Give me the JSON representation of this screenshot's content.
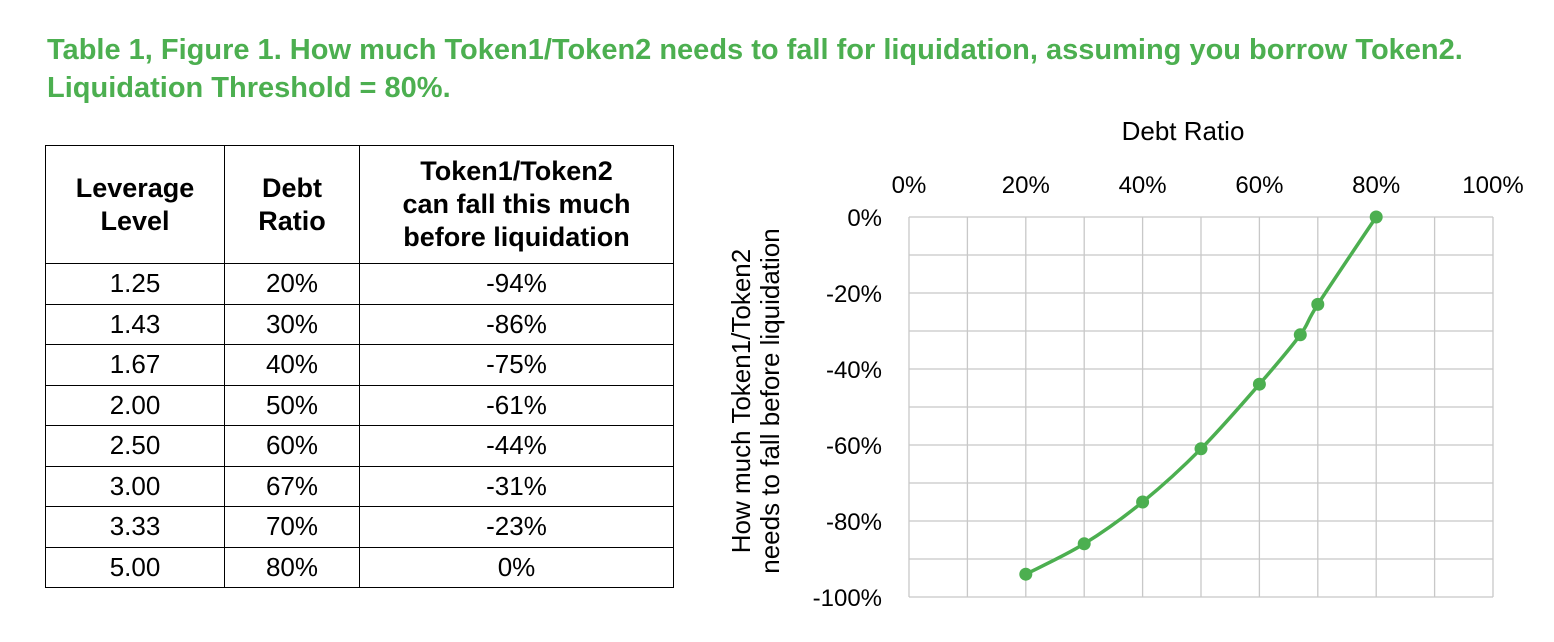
{
  "title": "Table 1, Figure 1. How much Token1/Token2 needs to fall for liquidation, assuming you borrow Token2. Liquidation Threshold = 80%.",
  "colors": {
    "accent": "#4caf50",
    "grid": "#c8c8c8"
  },
  "table": {
    "headers": [
      [
        "Leverage",
        "Level"
      ],
      [
        "Debt",
        "Ratio"
      ],
      [
        "Token1/Token2",
        "can fall this much",
        "before liquidation"
      ]
    ],
    "rows": [
      [
        "1.25",
        "20%",
        "-94%"
      ],
      [
        "1.43",
        "30%",
        "-86%"
      ],
      [
        "1.67",
        "40%",
        "-75%"
      ],
      [
        "2.00",
        "50%",
        "-61%"
      ],
      [
        "2.50",
        "60%",
        "-44%"
      ],
      [
        "3.00",
        "67%",
        "-31%"
      ],
      [
        "3.33",
        "70%",
        "-23%"
      ],
      [
        "5.00",
        "80%",
        "0%"
      ]
    ]
  },
  "chart_data": {
    "type": "line",
    "xlabel": "Debt Ratio",
    "ylabel": "How much Token1/Token2 needs to fall before liquidation",
    "ylabel_lines": [
      "How much Token1/Token2",
      "needs to fall before liquidation"
    ],
    "x_axis_position": "top",
    "xlim": [
      0,
      100
    ],
    "ylim": [
      -100,
      0
    ],
    "xticks": [
      0,
      20,
      40,
      60,
      80,
      100
    ],
    "xtick_labels": [
      "0%",
      "20%",
      "40%",
      "60%",
      "80%",
      "100%"
    ],
    "yticks": [
      0,
      -20,
      -40,
      -60,
      -80,
      -100
    ],
    "ytick_labels": [
      "0%",
      "-20%",
      "-40%",
      "-60%",
      "-80%",
      "-100%"
    ],
    "grid": true,
    "minor_grid_step_x": 10,
    "minor_grid_step_y": 10,
    "series": [
      {
        "x": [
          20,
          30,
          40,
          50,
          60,
          67,
          70,
          80
        ],
        "y": [
          -94,
          -86,
          -75,
          -61,
          -44,
          -31,
          -23,
          0
        ]
      }
    ]
  }
}
